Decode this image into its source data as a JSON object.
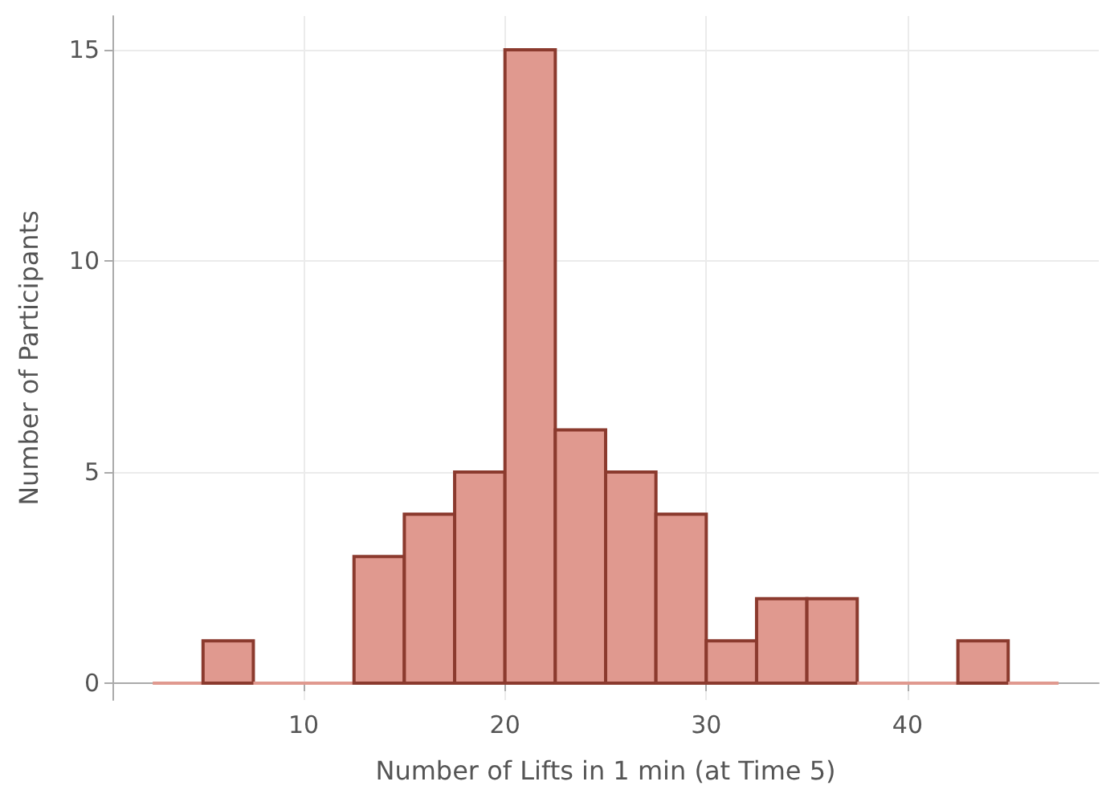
{
  "chart_data": {
    "type": "histogram",
    "xlabel": "Number of Lifts in 1 min (at Time 5)",
    "ylabel": "Number of Participants",
    "bins": [
      2.5,
      5,
      7.5,
      10,
      12.5,
      15,
      17.5,
      20,
      22.5,
      25,
      27.5,
      30,
      32.5,
      35,
      37.5,
      40,
      42.5,
      45,
      47.5
    ],
    "values": [
      0,
      1,
      0,
      0,
      3,
      4,
      5,
      15,
      6,
      5,
      4,
      1,
      2,
      2,
      0,
      0,
      1,
      0
    ],
    "color": "#e0998f",
    "xlim": [
      0.5,
      49.5
    ],
    "xticks": [
      10,
      20,
      30,
      40
    ],
    "ylim": [
      -0.4,
      15.8
    ],
    "yticks": [
      0,
      5,
      10,
      15
    ],
    "grid": true
  }
}
